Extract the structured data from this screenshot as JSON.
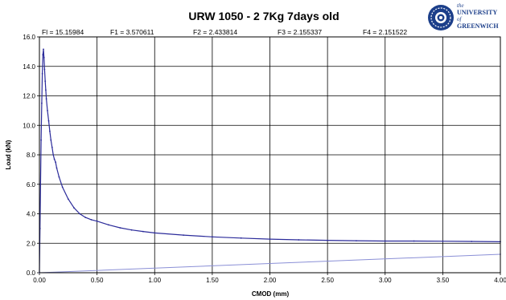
{
  "chart_data": {
    "type": "line",
    "title": "URW 1050 - 2  7Kg  7days old",
    "xlabel": "CMOD (mm)",
    "ylabel": "Load (kN)",
    "xlim": [
      0,
      4
    ],
    "ylim": [
      0,
      16
    ],
    "x_ticks": [
      "0.00",
      "0.50",
      "1.00",
      "1.50",
      "2.00",
      "2.50",
      "3.00",
      "3.50",
      "4.00"
    ],
    "y_ticks": [
      "0.0",
      "2.0",
      "4.0",
      "6.0",
      "8.0",
      "10.0",
      "12.0",
      "14.0",
      "16.0"
    ],
    "grid": true,
    "force_values": [
      {
        "label": "Fl = 15.15984"
      },
      {
        "label": "F1 = 3.570611"
      },
      {
        "label": "F2 = 2.433814"
      },
      {
        "label": "F3 = 2.155337"
      },
      {
        "label": "F4 = 2.151522"
      }
    ],
    "series": [
      {
        "x": [
          0.0,
          0.005,
          0.01,
          0.015,
          0.02,
          0.025,
          0.03,
          0.035,
          0.04,
          0.045,
          0.05,
          0.055,
          0.06,
          0.07,
          0.08,
          0.09,
          0.1,
          0.11,
          0.12,
          0.13,
          0.14,
          0.15,
          0.17,
          0.2,
          0.25,
          0.3,
          0.35,
          0.4,
          0.45,
          0.5,
          0.6,
          0.7,
          0.8,
          0.9,
          1.0,
          1.25,
          1.5,
          1.75,
          2.0,
          2.25,
          2.5,
          2.75,
          3.0,
          3.25,
          3.5,
          3.75,
          4.0
        ],
        "values": [
          0.0,
          3.0,
          6.0,
          9.0,
          11.5,
          13.5,
          14.8,
          15.16,
          14.6,
          13.8,
          13.0,
          12.4,
          11.8,
          11.0,
          10.3,
          9.6,
          9.0,
          8.5,
          8.0,
          7.7,
          7.5,
          7.1,
          6.5,
          5.8,
          5.0,
          4.4,
          4.0,
          3.75,
          3.6,
          3.5,
          3.25,
          3.05,
          2.9,
          2.8,
          2.7,
          2.55,
          2.43,
          2.35,
          2.28,
          2.23,
          2.2,
          2.17,
          2.15,
          2.15,
          2.14,
          2.12,
          2.1
        ]
      },
      {
        "x": [
          0.0,
          4.0
        ],
        "values": [
          0.0,
          1.25
        ]
      }
    ]
  },
  "logo": {
    "line1": "the",
    "line2": "UNIVERSITY",
    "line3": "of",
    "line4": "GREENWICH"
  },
  "colors": {
    "curve": "#2b2b9a",
    "baseline": "#8a8fd6",
    "grid": "#000000"
  }
}
